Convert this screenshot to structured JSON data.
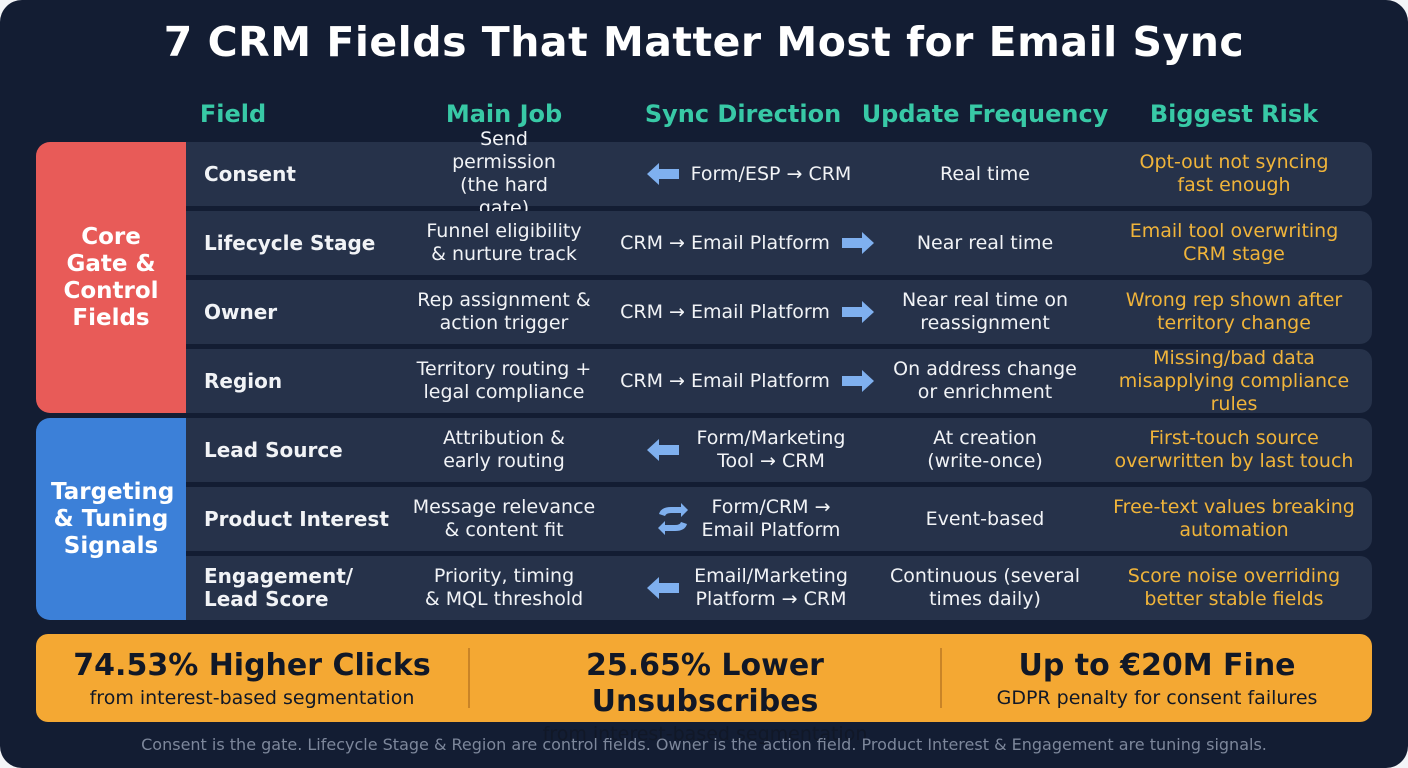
{
  "title": "7 CRM Fields That Matter Most for Email Sync",
  "columns": [
    "Field",
    "Main Job",
    "Sync Direction",
    "Update Frequency",
    "Biggest Risk"
  ],
  "groups": [
    {
      "label": "Core Gate & Control Fields",
      "color": "#e85b58"
    },
    {
      "label": "Targeting & Tuning Signals",
      "color": "#3c80d8"
    }
  ],
  "rows": [
    {
      "field": "Consent",
      "job": "Send permission (the hard gate)",
      "sync": "Form/ESP → CRM",
      "arrow": "left-arrow-icon",
      "frequency": "Real time",
      "risk": "Opt-out not syncing fast enough"
    },
    {
      "field": "Lifecycle Stage",
      "job": "Funnel eligibility & nurture track",
      "sync": "CRM → Email Platform",
      "arrow": "right-arrow-icon",
      "frequency": "Near real time",
      "risk": "Email tool overwriting CRM stage"
    },
    {
      "field": "Owner",
      "job": "Rep assignment & action trigger",
      "sync": "CRM → Email Platform",
      "arrow": "right-arrow-icon",
      "frequency": "Near real time on reassignment",
      "risk": "Wrong rep shown after territory change"
    },
    {
      "field": "Region",
      "job": "Territory routing + legal compliance",
      "sync": "CRM → Email Platform",
      "arrow": "right-arrow-icon",
      "frequency": "On address change or enrichment",
      "risk": "Missing/bad data misapplying compliance rules"
    },
    {
      "field": "Lead Source",
      "job": "Attribution & early routing",
      "sync": "Form/Marketing Tool → CRM",
      "arrow": "left-arrow-icon",
      "frequency": "At creation (write-once)",
      "risk": "First-touch source overwritten by last touch"
    },
    {
      "field": "Product Interest",
      "job": "Message relevance & content fit",
      "sync": "Form/CRM → Email Platform",
      "arrow": "bidirectional-sync-icon",
      "frequency": "Event-based",
      "risk": "Free-text values breaking automation"
    },
    {
      "field": "Engagement/ Lead Score",
      "job": "Priority, timing & MQL threshold",
      "sync": "Email/Marketing Platform → CRM",
      "arrow": "left-arrow-icon",
      "frequency": "Continuous (several times daily)",
      "risk": "Score noise overriding better stable fields"
    }
  ],
  "stats": [
    {
      "value": "74.53% Higher Clicks",
      "caption": "from interest-based segmentation"
    },
    {
      "value": "25.65% Lower Unsubscribes",
      "caption": "from interest-based segmentation"
    },
    {
      "value": "Up to €20M Fine",
      "caption": "GDPR penalty for consent failures"
    }
  ],
  "footer": "Consent is the gate. Lifecycle Stage & Region are control fields. Owner is the action field. Product Interest & Engagement are tuning signals.",
  "colors": {
    "background": "#131d33",
    "row": "#26324a",
    "header": "#38c9a6",
    "risk": "#f0b43a",
    "arrow": "#7fb0ef",
    "stats": "#f4a833"
  }
}
